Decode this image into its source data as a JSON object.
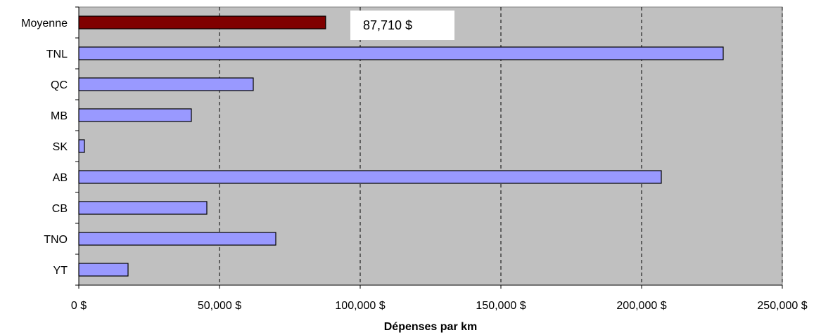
{
  "chart_data": {
    "type": "bar",
    "orientation": "horizontal",
    "categories": [
      "Moyenne",
      "TNL",
      "QC",
      "MB",
      "SK",
      "AB",
      "CB",
      "TNO",
      "YT"
    ],
    "values": [
      87710,
      229000,
      62000,
      40000,
      2000,
      207000,
      45500,
      70000,
      17500
    ],
    "xlabel": "Dépenses par km",
    "xlim": [
      0,
      250000
    ],
    "xticks": [
      0,
      50000,
      100000,
      150000,
      200000,
      250000
    ],
    "xtick_labels": [
      "0 $",
      "50,000 $",
      "100,000 $",
      "150,000 $",
      "200,000 $",
      "250,000 $"
    ],
    "grid": "vertical-dashed",
    "plot_background": "#c0c0c0",
    "bar_color": "#9999ff",
    "highlight_color": "#800000",
    "highlight_category": "Moyenne",
    "annotations": [
      {
        "category": "Moyenne",
        "text": "87,710 $"
      }
    ]
  }
}
